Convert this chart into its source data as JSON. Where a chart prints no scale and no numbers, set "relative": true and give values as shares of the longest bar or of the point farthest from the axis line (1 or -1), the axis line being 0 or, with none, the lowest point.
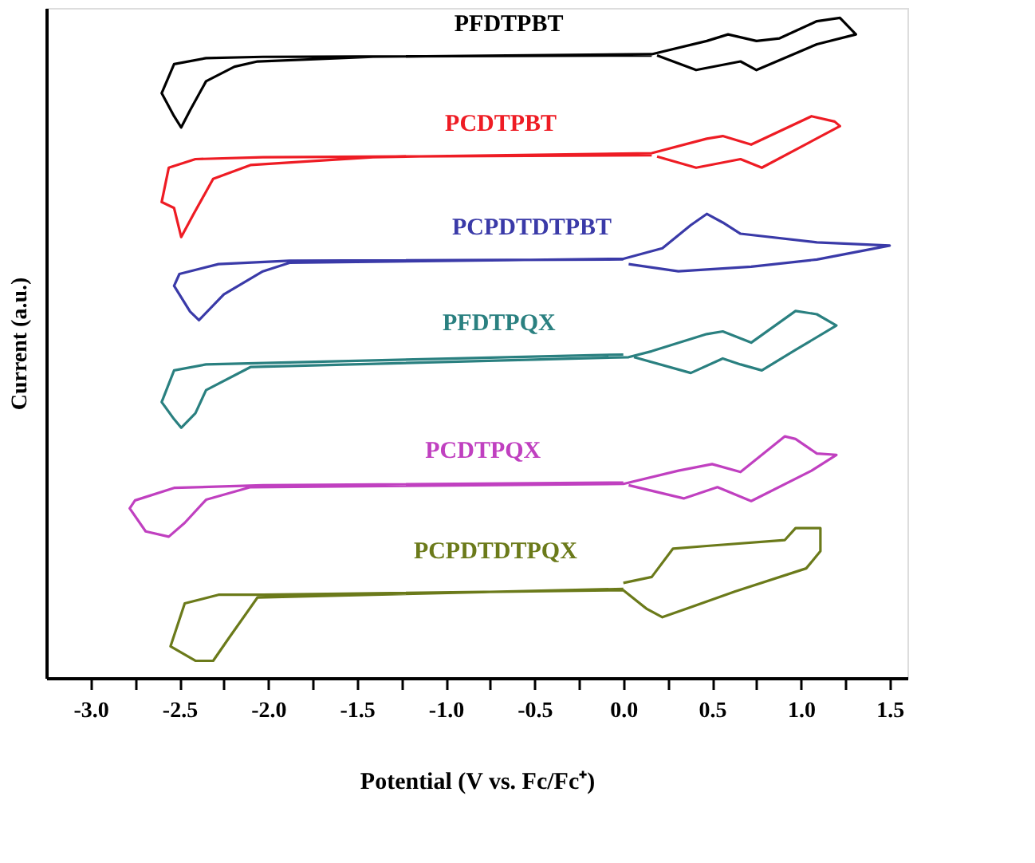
{
  "chart_data": {
    "type": "line",
    "relative": true,
    "xlabel": "Potential (V vs. Fc/Fc⁺)",
    "ylabel": "Current (a.u.)",
    "xlim": [
      -3.25,
      1.6
    ],
    "xticks": [
      {
        "value": -3.0,
        "label": "-3.0"
      },
      {
        "value": -2.75,
        "label": null
      },
      {
        "value": -2.5,
        "label": "-2.5"
      },
      {
        "value": -2.25,
        "label": null
      },
      {
        "value": -2.0,
        "label": "-2.0"
      },
      {
        "value": -1.75,
        "label": null
      },
      {
        "value": -1.5,
        "label": "-1.5"
      },
      {
        "value": -1.25,
        "label": null
      },
      {
        "value": -1.0,
        "label": "-1.0"
      },
      {
        "value": -0.75,
        "label": null
      },
      {
        "value": -0.5,
        "label": "-0.5"
      },
      {
        "value": -0.25,
        "label": null
      },
      {
        "value": 0.0,
        "label": "0.0"
      },
      {
        "value": 0.25,
        "label": null
      },
      {
        "value": 0.5,
        "label": "0.5"
      },
      {
        "value": 0.75,
        "label": null
      },
      {
        "value": 1.0,
        "label": "1.0"
      },
      {
        "value": 1.25,
        "label": null
      },
      {
        "value": 1.5,
        "label": "1.5"
      }
    ],
    "tick_labels": "x",
    "grid": false,
    "marker": "none",
    "line_style": "solid",
    "series": [
      {
        "name": "PFDTPBT",
        "color": "#000000",
        "x": [
          0.16,
          -2.03,
          -2.35,
          -2.53,
          -2.6,
          -2.53,
          -2.49,
          -2.44,
          -2.35,
          -2.19,
          -2.06,
          -1.41,
          0.16,
          0.47,
          0.59,
          0.75,
          0.88,
          1.09,
          1.22,
          1.31,
          1.09,
          0.75,
          0.66,
          0.41,
          0.19
        ],
        "values": [
          0.943,
          0.941,
          0.939,
          0.93,
          0.886,
          0.851,
          0.834,
          0.86,
          0.904,
          0.926,
          0.934,
          0.941,
          0.945,
          0.965,
          0.975,
          0.965,
          0.969,
          0.995,
          1.0,
          0.975,
          0.96,
          0.921,
          0.934,
          0.921,
          0.943
        ]
      },
      {
        "name": "PCDTPBT",
        "color": "#ee1c24",
        "x": [
          0.16,
          -2.03,
          -2.41,
          -2.56,
          -2.6,
          -2.53,
          -2.49,
          -2.42,
          -2.31,
          -2.1,
          -1.41,
          0.16,
          0.47,
          0.56,
          0.72,
          1.06,
          1.19,
          1.22,
          0.78,
          0.66,
          0.41,
          0.19
        ],
        "values": [
          0.792,
          0.789,
          0.786,
          0.773,
          0.721,
          0.712,
          0.668,
          0.703,
          0.756,
          0.777,
          0.789,
          0.795,
          0.817,
          0.821,
          0.808,
          0.851,
          0.843,
          0.836,
          0.773,
          0.786,
          0.773,
          0.79
        ]
      },
      {
        "name": "PCPDTDTPBT",
        "color": "#3a3aa8",
        "x": [
          0,
          -1.88,
          -2.28,
          -2.5,
          -2.53,
          -2.44,
          -2.39,
          -2.25,
          -2.03,
          -1.88,
          0,
          0.22,
          0.38,
          0.47,
          0.56,
          0.66,
          1.09,
          1.5,
          1.09,
          0.72,
          0.31,
          0.03
        ],
        "values": [
          0.634,
          0.632,
          0.627,
          0.612,
          0.594,
          0.555,
          0.542,
          0.581,
          0.616,
          0.629,
          0.635,
          0.651,
          0.686,
          0.703,
          0.69,
          0.673,
          0.66,
          0.655,
          0.634,
          0.623,
          0.616,
          0.627
        ]
      },
      {
        "name": "PFDTPQX",
        "color": "#2a8080",
        "x": [
          0,
          -2.35,
          -2.53,
          -2.6,
          -2.53,
          -2.49,
          -2.41,
          -2.35,
          -2.1,
          0.03,
          0.16,
          0.47,
          0.56,
          0.72,
          0.97,
          1.09,
          1.2,
          0.97,
          0.78,
          0.66,
          0.56,
          0.38,
          0.06
        ],
        "values": [
          0.49,
          0.475,
          0.466,
          0.418,
          0.392,
          0.379,
          0.401,
          0.436,
          0.471,
          0.486,
          0.495,
          0.521,
          0.525,
          0.508,
          0.556,
          0.551,
          0.534,
          0.497,
          0.466,
          0.475,
          0.484,
          0.462,
          0.486
        ]
      },
      {
        "name": "PCDTPQX",
        "color": "#c040c0",
        "x": [
          0,
          -2.03,
          -2.53,
          -2.75,
          -2.78,
          -2.69,
          -2.56,
          -2.47,
          -2.35,
          -2.1,
          0,
          0.31,
          0.5,
          0.66,
          0.91,
          0.97,
          1.09,
          1.2,
          1.06,
          0.72,
          0.53,
          0.34,
          0.03
        ],
        "values": [
          0.296,
          0.292,
          0.288,
          0.269,
          0.257,
          0.222,
          0.214,
          0.235,
          0.27,
          0.289,
          0.294,
          0.314,
          0.324,
          0.312,
          0.366,
          0.362,
          0.34,
          0.338,
          0.314,
          0.268,
          0.289,
          0.272,
          0.292
        ]
      },
      {
        "name": "PCPDTDTPQX",
        "color": "#6b7a1a",
        "x": [
          0,
          0.16,
          0.28,
          0.47,
          0.91,
          0.97,
          1.11,
          1.11,
          1.03,
          0.63,
          0.22,
          0.13,
          0,
          -2.03,
          -2.28,
          -2.47,
          -2.55,
          -2.41,
          -2.31,
          -2.22,
          -2.06,
          0
        ],
        "values": [
          0.144,
          0.153,
          0.196,
          0.2,
          0.209,
          0.227,
          0.227,
          0.192,
          0.166,
          0.131,
          0.092,
          0.105,
          0.133,
          0.126,
          0.126,
          0.113,
          0.048,
          0.026,
          0.026,
          0.061,
          0.122,
          0.135
        ]
      }
    ]
  }
}
